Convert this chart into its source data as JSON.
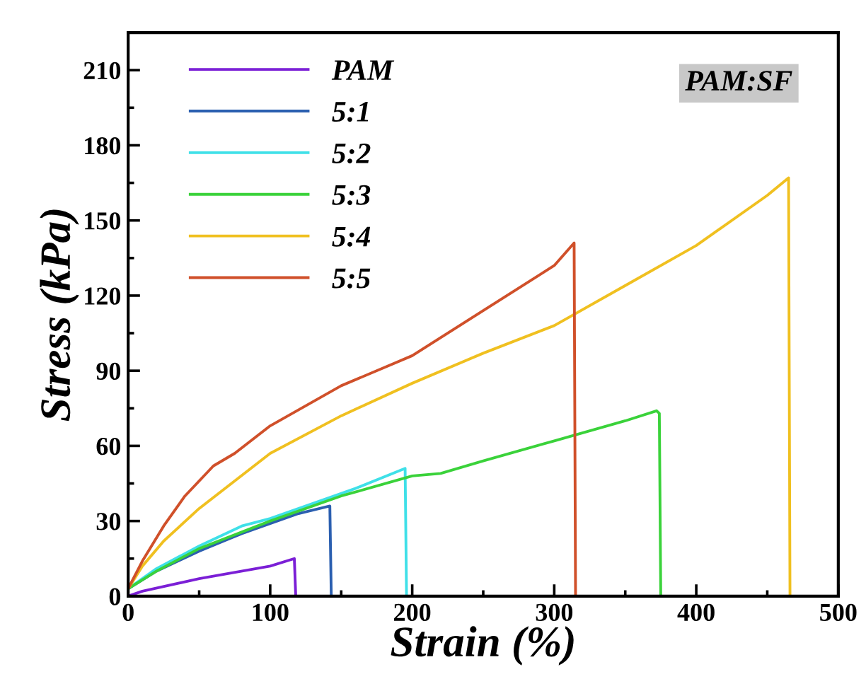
{
  "chart_data": {
    "type": "line",
    "xlabel": "Strain (%)",
    "ylabel": "Stress (kPa)",
    "annotations": [
      "PAM:SF"
    ],
    "xlim": [
      0,
      500
    ],
    "xticks": [
      0,
      100,
      200,
      300,
      400,
      500
    ],
    "ylim": [
      0,
      225
    ],
    "yticks": [
      0,
      30,
      60,
      90,
      120,
      150,
      180,
      210
    ],
    "legend": "top left",
    "grid": false,
    "marker": "none",
    "line_style": "solid",
    "series": [
      {
        "name": "PAM",
        "color": "#7b1fd6",
        "x": [
          0,
          10,
          50,
          100,
          117,
          118
        ],
        "values": [
          0,
          2,
          7,
          12,
          15,
          0
        ]
      },
      {
        "name": "5:1",
        "color": "#2b5fb0",
        "x": [
          0,
          20,
          50,
          80,
          100,
          120,
          142,
          143
        ],
        "values": [
          3,
          10,
          18,
          25,
          29,
          33,
          36,
          0
        ]
      },
      {
        "name": "5:2",
        "color": "#3fe0e8",
        "x": [
          0,
          20,
          50,
          80,
          100,
          130,
          160,
          195,
          196
        ],
        "values": [
          3,
          11,
          20,
          28,
          31,
          37,
          43,
          51,
          0
        ]
      },
      {
        "name": "5:3",
        "color": "#3ad23a",
        "x": [
          0,
          20,
          50,
          100,
          150,
          200,
          220,
          250,
          300,
          350,
          372,
          374,
          375
        ],
        "values": [
          3,
          10,
          19,
          30,
          40,
          48,
          49,
          54,
          62,
          70,
          74,
          73,
          0
        ]
      },
      {
        "name": "5:4",
        "color": "#f0c020",
        "x": [
          0,
          10,
          25,
          50,
          100,
          150,
          200,
          250,
          300,
          350,
          400,
          450,
          465,
          466
        ],
        "values": [
          3,
          12,
          22,
          35,
          57,
          72,
          85,
          97,
          108,
          124,
          140,
          160,
          167,
          0
        ]
      },
      {
        "name": "5:5",
        "color": "#d0502a",
        "x": [
          0,
          10,
          25,
          40,
          60,
          75,
          100,
          150,
          200,
          250,
          300,
          314,
          315
        ],
        "values": [
          3,
          14,
          28,
          40,
          52,
          57,
          68,
          84,
          96,
          114,
          132,
          141,
          0
        ]
      }
    ]
  }
}
